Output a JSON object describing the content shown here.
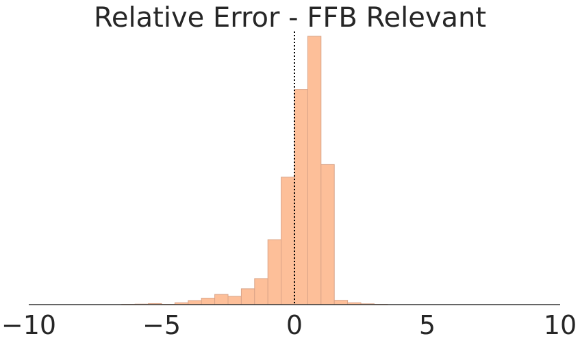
{
  "chart_data": {
    "type": "bar",
    "title": "Relative Error - FFB Relevant",
    "xlabel": "",
    "ylabel": "",
    "xlim": [
      -10,
      10
    ],
    "xticks": [
      -10,
      -5,
      0,
      5,
      10
    ],
    "xtick_labels": [
      "−10",
      "−5",
      "0",
      "5",
      "10"
    ],
    "grid": false,
    "legend": "none",
    "bin_width": 0.5,
    "bin_starts": [
      -6.5,
      -6,
      -5.5,
      -5,
      -4.5,
      -4,
      -3.5,
      -3,
      -2.5,
      -2,
      -1.5,
      -1,
      -0.5,
      0,
      0.5,
      1,
      1.5,
      2,
      2.5,
      3
    ],
    "values": [
      0.1,
      0.2,
      0.4,
      0.1,
      0.7,
      1.5,
      2.4,
      3.8,
      3.1,
      5.9,
      9.7,
      24.2,
      47.5,
      80.2,
      100.0,
      52.2,
      1.6,
      0.7,
      0.3,
      0.1
    ],
    "reference_line_x": 0,
    "colors": {
      "bar_fill": "#fdbf99",
      "bar_edge": "#d9a488",
      "axis_line": "#333333",
      "reference_line": "#000000",
      "text": "#262626"
    }
  }
}
